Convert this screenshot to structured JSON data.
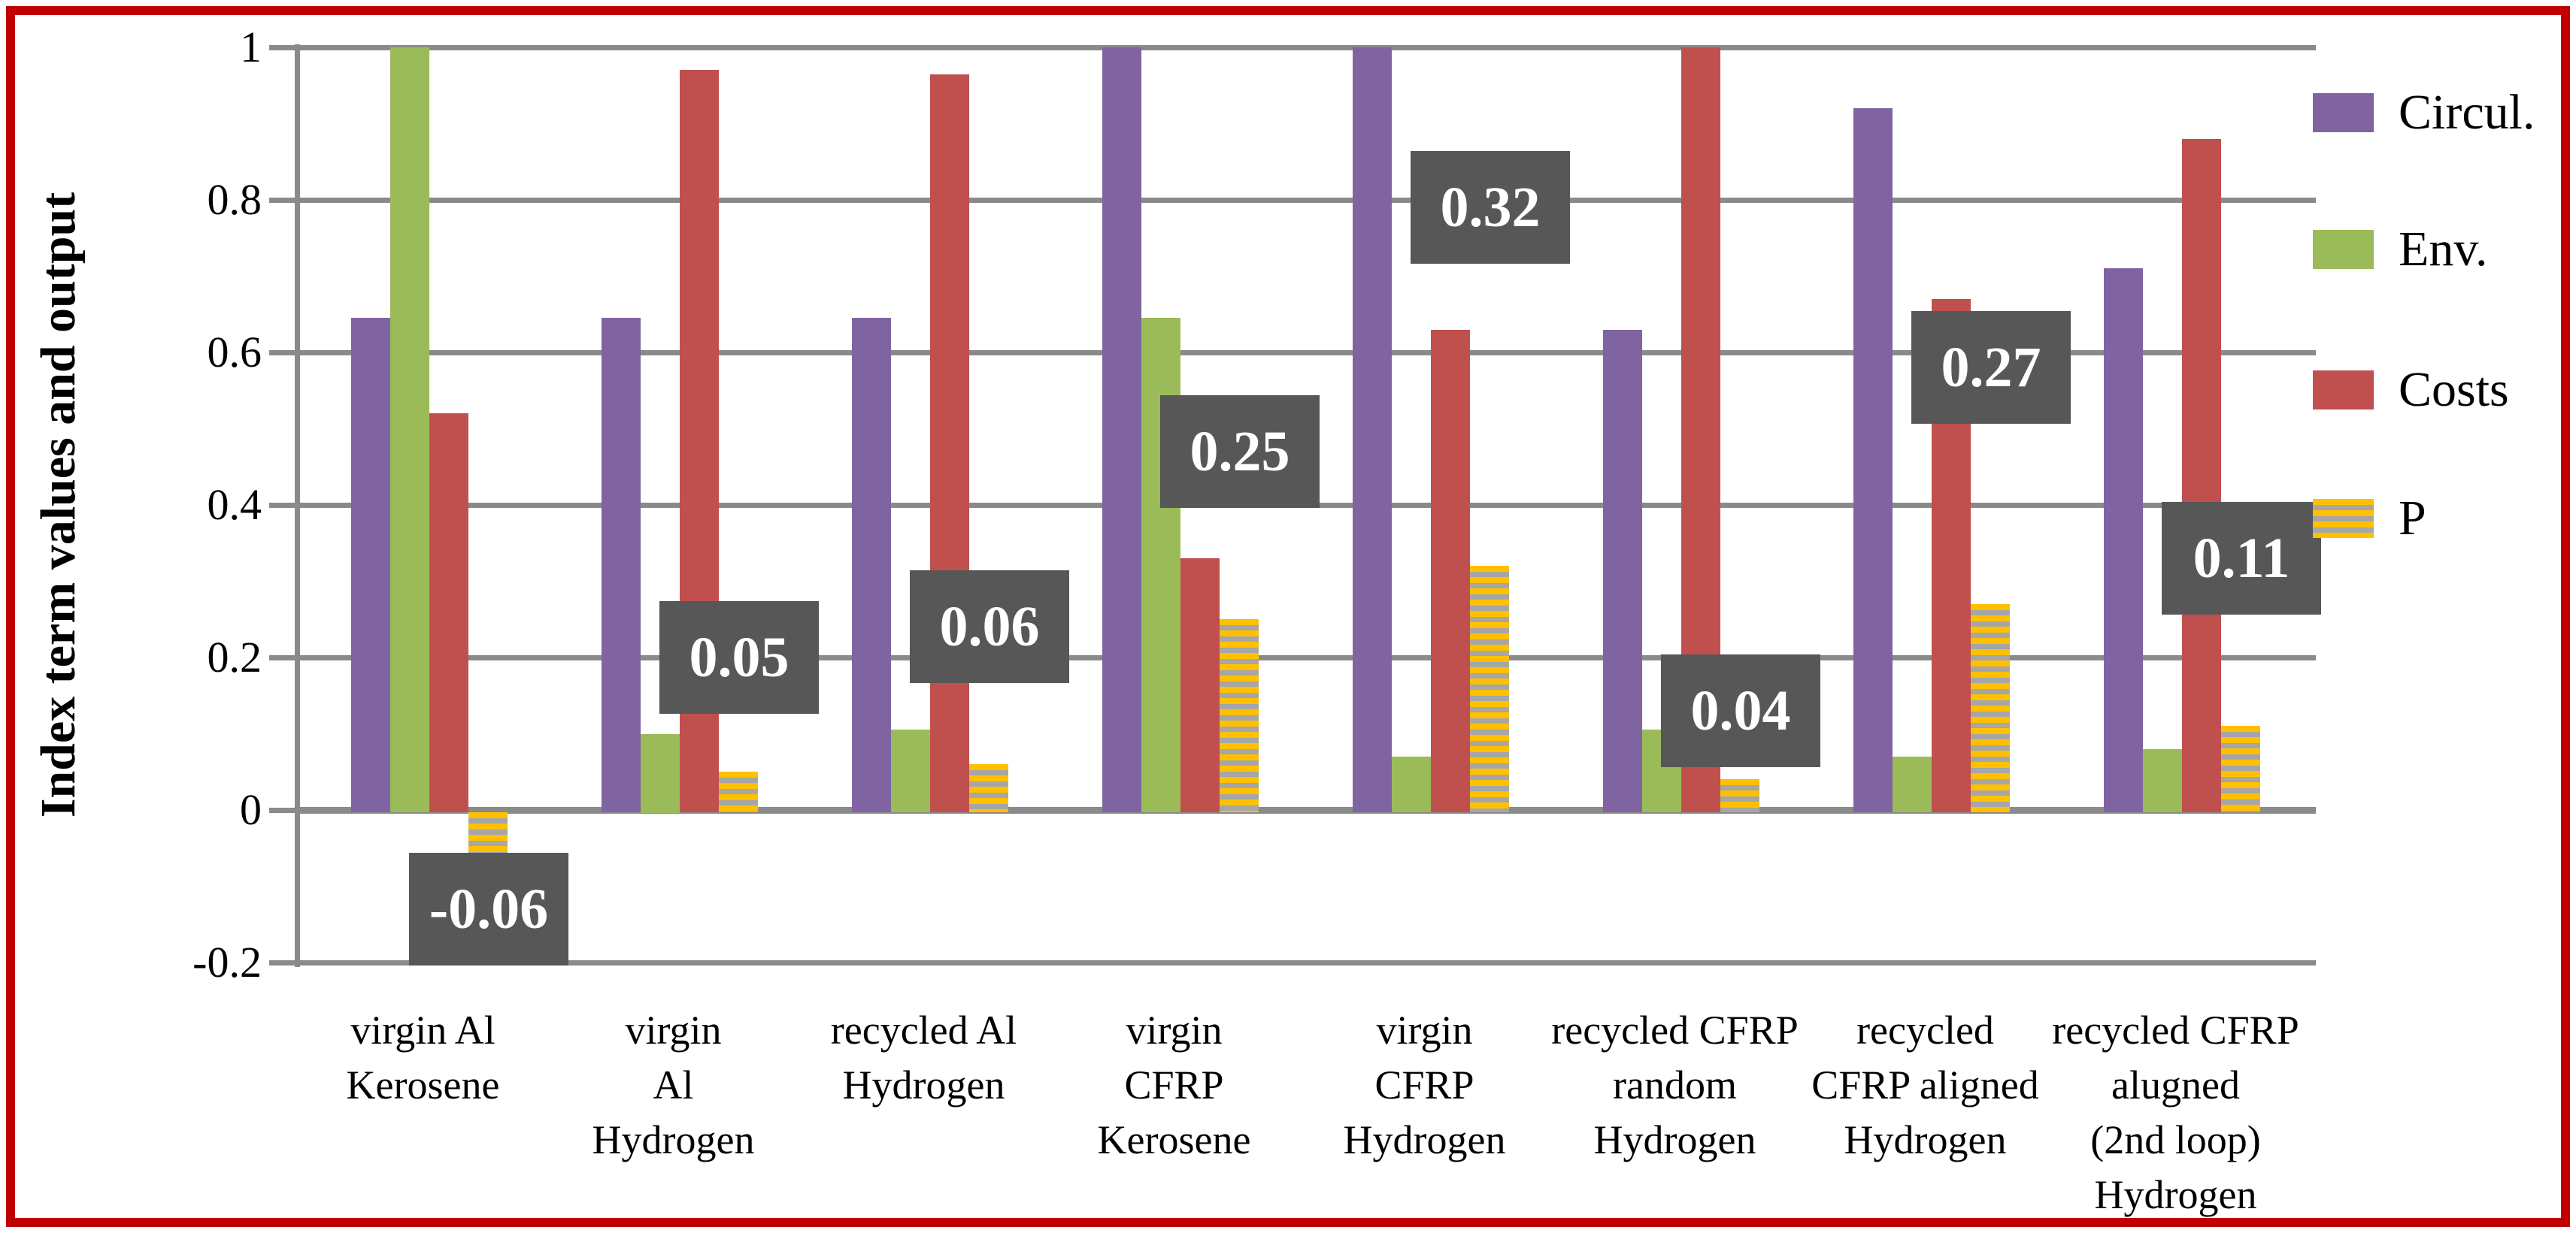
{
  "figure": {
    "background": "#FFFFFF",
    "border_color": "#C00000"
  },
  "chart_data": {
    "type": "bar",
    "title": "",
    "ylabel": "Index term values and output",
    "xlabel": "",
    "ylim": [
      -0.2,
      1
    ],
    "grid": true,
    "legend_position": "right",
    "gridline_color": "#8A8A8A",
    "yticks": [
      {
        "label": "1",
        "value": 1
      },
      {
        "label": "0.8",
        "value": 0.8
      },
      {
        "label": "0.6",
        "value": 0.6
      },
      {
        "label": "0.4",
        "value": 0.4
      },
      {
        "label": "0.2",
        "value": 0.2
      },
      {
        "label": "0",
        "value": 0
      },
      {
        "label": "-0.2",
        "value": -0.2
      }
    ],
    "categories": [
      {
        "lines": [
          "virgin Al",
          "Kerosene"
        ]
      },
      {
        "lines": [
          "virgin",
          "Al",
          "Hydrogen"
        ]
      },
      {
        "lines": [
          "recycled Al",
          "Hydrogen"
        ]
      },
      {
        "lines": [
          "virgin",
          "CFRP",
          "Kerosene"
        ]
      },
      {
        "lines": [
          "virgin",
          "CFRP",
          "Hydrogen"
        ]
      },
      {
        "lines": [
          "recycled CFRP",
          "random",
          "Hydrogen"
        ]
      },
      {
        "lines": [
          "recycled",
          "CFRP aligned",
          "Hydrogen"
        ]
      },
      {
        "lines": [
          "recycled CFRP",
          "alugned",
          "(2nd loop)",
          "Hydrogen"
        ]
      }
    ],
    "series": [
      {
        "name": "Circul.",
        "color": "#8064A2",
        "pattern": "solid",
        "values": [
          0.645,
          0.645,
          0.645,
          1.0,
          1.0,
          0.63,
          0.92,
          0.71
        ]
      },
      {
        "name": "Env.",
        "color": "#9BBB59",
        "pattern": "solid",
        "values": [
          1.0,
          0.1,
          0.105,
          0.645,
          0.07,
          0.105,
          0.07,
          0.08
        ]
      },
      {
        "name": "Costs",
        "color": "#C0504D",
        "pattern": "solid",
        "values": [
          0.52,
          0.97,
          0.965,
          0.33,
          0.63,
          1.0,
          0.67,
          0.88
        ]
      },
      {
        "name": "P",
        "color": "#FFC000",
        "pattern": "stripes",
        "stripe_color": "#A6A6A6",
        "values": [
          -0.06,
          0.05,
          0.06,
          0.25,
          0.32,
          0.04,
          0.27,
          0.11
        ]
      }
    ],
    "data_labels": {
      "series": "P",
      "box_color": "#575757",
      "text_color": "#FFFFFF",
      "items": [
        {
          "text": "-0.06",
          "anchor_y": -0.13
        },
        {
          "text": "0.05",
          "anchor_y": 0.2
        },
        {
          "text": "0.06",
          "anchor_y": 0.24
        },
        {
          "text": "0.25",
          "anchor_y": 0.47
        },
        {
          "text": "0.32",
          "anchor_y": 0.79
        },
        {
          "text": "0.04",
          "anchor_y": 0.13
        },
        {
          "text": "0.27",
          "anchor_y": 0.58
        },
        {
          "text": "0.11",
          "anchor_y": 0.33
        }
      ]
    },
    "legend": {
      "entries": [
        {
          "label": "Circul."
        },
        {
          "label": "Env."
        },
        {
          "label": "Costs"
        },
        {
          "label": "P"
        }
      ]
    }
  }
}
